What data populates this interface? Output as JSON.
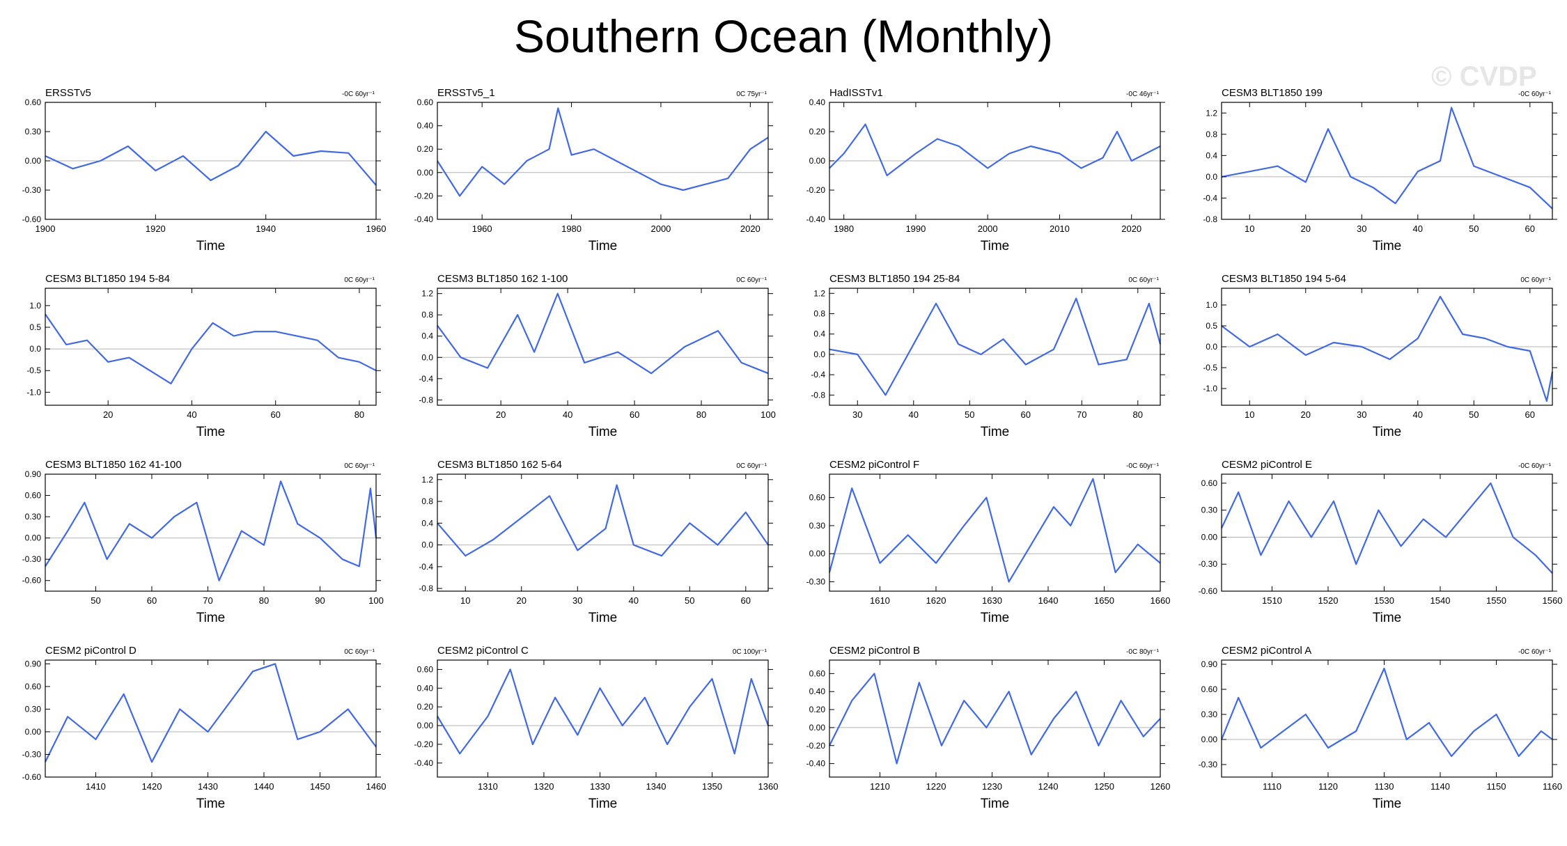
{
  "title": "Southern Ocean (Monthly)",
  "watermark": "© CVDP",
  "line_color": "#4169e1",
  "chart_data": [
    {
      "type": "line",
      "title": "ERSSTv5",
      "trend": "-0C 60yr⁻¹",
      "xlabel": "Time",
      "xlim": [
        1900,
        1960
      ],
      "ylim": [
        -0.6,
        0.6
      ],
      "xticks": [
        1900,
        1920,
        1940,
        1960
      ],
      "xtick_labels": [
        "1900",
        "1920",
        "1940",
        "1960"
      ],
      "yticks": [
        -0.6,
        -0.3,
        0,
        0.3,
        0.6
      ],
      "ytick_labels": [
        "-0.60",
        "-0.30",
        "0.00",
        "0.30",
        "0.60"
      ],
      "x": [
        1900,
        1905,
        1910,
        1915,
        1920,
        1925,
        1930,
        1935,
        1940,
        1945,
        1950,
        1955,
        1960
      ],
      "y": [
        0.05,
        -0.08,
        0.0,
        0.15,
        -0.1,
        0.05,
        -0.2,
        -0.05,
        0.3,
        0.05,
        0.1,
        0.08,
        -0.25
      ]
    },
    {
      "type": "line",
      "title": "ERSSTv5_1",
      "trend": "0C 75yr⁻¹",
      "xlabel": "Time",
      "xlim": [
        1950,
        2024
      ],
      "ylim": [
        -0.4,
        0.6
      ],
      "xticks": [
        1960,
        1980,
        2000,
        2020
      ],
      "xtick_labels": [
        "1960",
        "1980",
        "2000",
        "2020"
      ],
      "yticks": [
        -0.4,
        -0.2,
        0,
        0.2,
        0.4,
        0.6
      ],
      "ytick_labels": [
        "-0.40",
        "-0.20",
        "0.00",
        "0.20",
        "0.40",
        "0.60"
      ],
      "x": [
        1950,
        1955,
        1960,
        1965,
        1970,
        1975,
        1977,
        1980,
        1985,
        1990,
        1995,
        2000,
        2005,
        2010,
        2015,
        2020,
        2024
      ],
      "y": [
        0.1,
        -0.2,
        0.05,
        -0.1,
        0.1,
        0.2,
        0.55,
        0.15,
        0.2,
        0.1,
        0.0,
        -0.1,
        -0.15,
        -0.1,
        -0.05,
        0.2,
        0.3
      ]
    },
    {
      "type": "line",
      "title": "HadISSTv1",
      "trend": "-0C 46yr⁻¹",
      "xlabel": "Time",
      "xlim": [
        1978,
        2024
      ],
      "ylim": [
        -0.4,
        0.4
      ],
      "xticks": [
        1980,
        1990,
        2000,
        2010,
        2020
      ],
      "xtick_labels": [
        "1980",
        "1990",
        "2000",
        "2010",
        "2020"
      ],
      "yticks": [
        -0.4,
        -0.2,
        0,
        0.2,
        0.4
      ],
      "ytick_labels": [
        "-0.40",
        "-0.20",
        "0.00",
        "0.20",
        "0.40"
      ],
      "x": [
        1978,
        1980,
        1983,
        1986,
        1990,
        1993,
        1996,
        2000,
        2003,
        2006,
        2010,
        2013,
        2016,
        2018,
        2020,
        2024
      ],
      "y": [
        -0.05,
        0.05,
        0.25,
        -0.1,
        0.05,
        0.15,
        0.1,
        -0.05,
        0.05,
        0.1,
        0.05,
        -0.05,
        0.02,
        0.2,
        0.0,
        0.1
      ]
    },
    {
      "type": "line",
      "title": "CESM3 BLT1850 199",
      "trend": "-0C 60yr⁻¹",
      "xlabel": "Time",
      "xlim": [
        5,
        64
      ],
      "ylim": [
        -0.8,
        1.4
      ],
      "xticks": [
        10,
        20,
        30,
        40,
        50,
        60
      ],
      "xtick_labels": [
        "10",
        "20",
        "30",
        "40",
        "50",
        "60"
      ],
      "yticks": [
        -0.8,
        -0.4,
        0,
        0.4,
        0.8,
        1.2
      ],
      "ytick_labels": [
        "-0.8",
        "-0.4",
        "0.0",
        "0.4",
        "0.8",
        "1.2"
      ],
      "x": [
        5,
        10,
        15,
        20,
        24,
        28,
        32,
        36,
        40,
        44,
        46,
        50,
        55,
        60,
        64
      ],
      "y": [
        0.0,
        0.1,
        0.2,
        -0.1,
        0.9,
        0.0,
        -0.2,
        -0.5,
        0.1,
        0.3,
        1.3,
        0.2,
        0.0,
        -0.2,
        -0.6
      ]
    },
    {
      "type": "line",
      "title": "CESM3 BLT1850 194 5-84",
      "trend": "0C 60yr⁻¹",
      "xlabel": "Time",
      "xlim": [
        5,
        84
      ],
      "ylim": [
        -1.3,
        1.4
      ],
      "xticks": [
        20,
        40,
        60,
        80
      ],
      "xtick_labels": [
        "20",
        "40",
        "60",
        "80"
      ],
      "yticks": [
        -1.0,
        -0.5,
        0,
        0.5,
        1.0
      ],
      "ytick_labels": [
        "-1.0",
        "-0.5",
        "0.0",
        "0.5",
        "1.0"
      ],
      "x": [
        5,
        10,
        15,
        20,
        25,
        30,
        35,
        40,
        45,
        50,
        55,
        60,
        65,
        70,
        75,
        80,
        84
      ],
      "y": [
        0.8,
        0.1,
        0.2,
        -0.3,
        -0.2,
        -0.5,
        -0.8,
        0.0,
        0.6,
        0.3,
        0.4,
        0.4,
        0.3,
        0.2,
        -0.2,
        -0.3,
        -0.5
      ]
    },
    {
      "type": "line",
      "title": "CESM3 BLT1850 162 1-100",
      "trend": "0C 60yr⁻¹",
      "xlabel": "Time",
      "xlim": [
        1,
        100
      ],
      "ylim": [
        -0.9,
        1.3
      ],
      "xticks": [
        20,
        40,
        60,
        80,
        100
      ],
      "xtick_labels": [
        "20",
        "40",
        "60",
        "80",
        "100"
      ],
      "yticks": [
        -0.8,
        -0.4,
        0,
        0.4,
        0.8,
        1.2
      ],
      "ytick_labels": [
        "-0.8",
        "-0.4",
        "0.0",
        "0.4",
        "0.8",
        "1.2"
      ],
      "x": [
        1,
        8,
        16,
        25,
        30,
        37,
        45,
        55,
        65,
        75,
        85,
        92,
        100
      ],
      "y": [
        0.6,
        0.0,
        -0.2,
        0.8,
        0.1,
        1.2,
        -0.1,
        0.1,
        -0.3,
        0.2,
        0.5,
        -0.1,
        -0.3
      ]
    },
    {
      "type": "line",
      "title": "CESM3 BLT1850 194 25-84",
      "trend": "0C 60yr⁻¹",
      "xlabel": "Time",
      "xlim": [
        25,
        84
      ],
      "ylim": [
        -1.0,
        1.3
      ],
      "xticks": [
        30,
        40,
        50,
        60,
        70,
        80
      ],
      "xtick_labels": [
        "30",
        "40",
        "50",
        "60",
        "70",
        "80"
      ],
      "yticks": [
        -0.8,
        -0.4,
        0,
        0.4,
        0.8,
        1.2
      ],
      "ytick_labels": [
        "-0.8",
        "-0.4",
        "0.0",
        "0.4",
        "0.8",
        "1.2"
      ],
      "x": [
        25,
        30,
        35,
        40,
        44,
        48,
        52,
        56,
        60,
        65,
        69,
        73,
        78,
        82,
        84
      ],
      "y": [
        0.1,
        0.0,
        -0.8,
        0.2,
        1.0,
        0.2,
        0.0,
        0.3,
        -0.2,
        0.1,
        1.1,
        -0.2,
        -0.1,
        1.0,
        0.2
      ]
    },
    {
      "type": "line",
      "title": "CESM3 BLT1850 194 5-64",
      "trend": "0C 60yr⁻¹",
      "xlabel": "Time",
      "xlim": [
        5,
        64
      ],
      "ylim": [
        -1.4,
        1.4
      ],
      "xticks": [
        10,
        20,
        30,
        40,
        50,
        60
      ],
      "xtick_labels": [
        "10",
        "20",
        "30",
        "40",
        "50",
        "60"
      ],
      "yticks": [
        -1.0,
        -0.5,
        0,
        0.5,
        1.0
      ],
      "ytick_labels": [
        "-1.0",
        "-0.5",
        "0.0",
        "0.5",
        "1.0"
      ],
      "x": [
        5,
        10,
        15,
        20,
        25,
        30,
        35,
        40,
        44,
        48,
        52,
        56,
        60,
        63,
        64
      ],
      "y": [
        0.5,
        0.0,
        0.3,
        -0.2,
        0.1,
        0.0,
        -0.3,
        0.2,
        1.2,
        0.3,
        0.2,
        0.0,
        -0.1,
        -1.3,
        -0.6
      ]
    },
    {
      "type": "line",
      "title": "CESM3 BLT1850 162 41-100",
      "trend": "0C 60yr⁻¹",
      "xlabel": "Time",
      "xlim": [
        41,
        100
      ],
      "ylim": [
        -0.75,
        0.9
      ],
      "xticks": [
        50,
        60,
        70,
        80,
        90,
        100
      ],
      "xtick_labels": [
        "50",
        "60",
        "70",
        "80",
        "90",
        "100"
      ],
      "yticks": [
        -0.6,
        -0.3,
        0,
        0.3,
        0.6,
        0.9
      ],
      "ytick_labels": [
        "-0.60",
        "-0.30",
        "0.00",
        "0.30",
        "0.60",
        "0.90"
      ],
      "x": [
        41,
        45,
        48,
        52,
        56,
        60,
        64,
        68,
        72,
        76,
        80,
        83,
        86,
        90,
        94,
        97,
        99,
        100
      ],
      "y": [
        -0.4,
        0.1,
        0.5,
        -0.3,
        0.2,
        0.0,
        0.3,
        0.5,
        -0.6,
        0.1,
        -0.1,
        0.8,
        0.2,
        0.0,
        -0.3,
        -0.4,
        0.7,
        0.0
      ]
    },
    {
      "type": "line",
      "title": "CESM3 BLT1850 162 5-64",
      "trend": "0C 60yr⁻¹",
      "xlabel": "Time",
      "xlim": [
        5,
        64
      ],
      "ylim": [
        -0.85,
        1.3
      ],
      "xticks": [
        10,
        20,
        30,
        40,
        50,
        60
      ],
      "xtick_labels": [
        "10",
        "20",
        "30",
        "40",
        "50",
        "60"
      ],
      "yticks": [
        -0.8,
        -0.4,
        0,
        0.4,
        0.8,
        1.2
      ],
      "ytick_labels": [
        "-0.8",
        "-0.4",
        "0.0",
        "0.4",
        "0.8",
        "1.2"
      ],
      "x": [
        5,
        10,
        15,
        20,
        25,
        30,
        35,
        37,
        40,
        45,
        50,
        55,
        60,
        64
      ],
      "y": [
        0.4,
        -0.2,
        0.1,
        0.5,
        0.9,
        -0.1,
        0.3,
        1.1,
        0.0,
        -0.2,
        0.4,
        0.0,
        0.6,
        0.0
      ]
    },
    {
      "type": "line",
      "title": "CESM2 piControl F",
      "trend": "-0C 60yr⁻¹",
      "xlabel": "Time",
      "xlim": [
        1601,
        1660
      ],
      "ylim": [
        -0.4,
        0.85
      ],
      "xticks": [
        1610,
        1620,
        1630,
        1640,
        1650,
        1660
      ],
      "xtick_labels": [
        "1610",
        "1620",
        "1630",
        "1640",
        "1650",
        "1660"
      ],
      "yticks": [
        -0.3,
        0,
        0.3,
        0.6
      ],
      "ytick_labels": [
        "-0.30",
        "0.00",
        "0.30",
        "0.60"
      ],
      "x": [
        1601,
        1605,
        1610,
        1615,
        1620,
        1625,
        1629,
        1633,
        1637,
        1641,
        1644,
        1648,
        1652,
        1656,
        1660
      ],
      "y": [
        -0.2,
        0.7,
        -0.1,
        0.2,
        -0.1,
        0.3,
        0.6,
        -0.3,
        0.1,
        0.5,
        0.3,
        0.8,
        -0.2,
        0.1,
        -0.1
      ]
    },
    {
      "type": "line",
      "title": "CESM2 piControl E",
      "trend": "-0C 60yr⁻¹",
      "xlabel": "Time",
      "xlim": [
        1501,
        1560
      ],
      "ylim": [
        -0.6,
        0.7
      ],
      "xticks": [
        1510,
        1520,
        1530,
        1540,
        1550,
        1560
      ],
      "xtick_labels": [
        "1510",
        "1520",
        "1530",
        "1540",
        "1550",
        "1560"
      ],
      "yticks": [
        -0.6,
        -0.3,
        0,
        0.3,
        0.6
      ],
      "ytick_labels": [
        "-0.60",
        "-0.30",
        "0.00",
        "0.30",
        "0.60"
      ],
      "x": [
        1501,
        1504,
        1508,
        1513,
        1517,
        1521,
        1525,
        1529,
        1533,
        1537,
        1541,
        1545,
        1549,
        1553,
        1557,
        1560
      ],
      "y": [
        0.1,
        0.5,
        -0.2,
        0.4,
        0.0,
        0.4,
        -0.3,
        0.3,
        -0.1,
        0.2,
        0.0,
        0.3,
        0.6,
        0.0,
        -0.2,
        -0.4
      ]
    },
    {
      "type": "line",
      "title": "CESM2 piControl D",
      "trend": "0C 60yr⁻¹",
      "xlabel": "Time",
      "xlim": [
        1401,
        1460
      ],
      "ylim": [
        -0.6,
        0.95
      ],
      "xticks": [
        1410,
        1420,
        1430,
        1440,
        1450,
        1460
      ],
      "xtick_labels": [
        "1410",
        "1420",
        "1430",
        "1440",
        "1450",
        "1460"
      ],
      "yticks": [
        -0.6,
        -0.3,
        0,
        0.3,
        0.6,
        0.9
      ],
      "ytick_labels": [
        "-0.60",
        "-0.30",
        "0.00",
        "0.30",
        "0.60",
        "0.90"
      ],
      "x": [
        1401,
        1405,
        1410,
        1415,
        1420,
        1425,
        1430,
        1434,
        1438,
        1442,
        1446,
        1450,
        1455,
        1460
      ],
      "y": [
        -0.4,
        0.2,
        -0.1,
        0.5,
        -0.4,
        0.3,
        0.0,
        0.4,
        0.8,
        0.9,
        -0.1,
        0.0,
        0.3,
        -0.2
      ]
    },
    {
      "type": "line",
      "title": "CESM2 piControl C",
      "trend": "0C 100yr⁻¹",
      "xlabel": "Time",
      "xlim": [
        1301,
        1360
      ],
      "ylim": [
        -0.55,
        0.7
      ],
      "xticks": [
        1310,
        1320,
        1330,
        1340,
        1350,
        1360
      ],
      "xtick_labels": [
        "1310",
        "1320",
        "1330",
        "1340",
        "1350",
        "1360"
      ],
      "yticks": [
        -0.4,
        -0.2,
        0,
        0.2,
        0.4,
        0.6
      ],
      "ytick_labels": [
        "-0.40",
        "-0.20",
        "0.00",
        "0.20",
        "0.40",
        "0.60"
      ],
      "x": [
        1301,
        1305,
        1310,
        1314,
        1318,
        1322,
        1326,
        1330,
        1334,
        1338,
        1342,
        1346,
        1350,
        1354,
        1357,
        1360
      ],
      "y": [
        0.1,
        -0.3,
        0.1,
        0.6,
        -0.2,
        0.3,
        -0.1,
        0.4,
        0.0,
        0.3,
        -0.2,
        0.2,
        0.5,
        -0.3,
        0.5,
        0.0
      ]
    },
    {
      "type": "line",
      "title": "CESM2 piControl B",
      "trend": "-0C 80yr⁻¹",
      "xlabel": "Time",
      "xlim": [
        1201,
        1260
      ],
      "ylim": [
        -0.55,
        0.75
      ],
      "xticks": [
        1210,
        1220,
        1230,
        1240,
        1250,
        1260
      ],
      "xtick_labels": [
        "1210",
        "1220",
        "1230",
        "1240",
        "1250",
        "1260"
      ],
      "yticks": [
        -0.4,
        -0.2,
        0,
        0.2,
        0.4,
        0.6
      ],
      "ytick_labels": [
        "-0.40",
        "-0.20",
        "0.00",
        "0.20",
        "0.40",
        "0.60"
      ],
      "x": [
        1201,
        1205,
        1209,
        1213,
        1217,
        1221,
        1225,
        1229,
        1233,
        1237,
        1241,
        1245,
        1249,
        1253,
        1257,
        1260
      ],
      "y": [
        -0.2,
        0.3,
        0.6,
        -0.4,
        0.5,
        -0.2,
        0.3,
        0.0,
        0.4,
        -0.3,
        0.1,
        0.4,
        -0.2,
        0.3,
        -0.1,
        0.1
      ]
    },
    {
      "type": "line",
      "title": "CESM2 piControl A",
      "trend": "-0C 60yr⁻¹",
      "xlabel": "Time",
      "xlim": [
        1101,
        1160
      ],
      "ylim": [
        -0.45,
        0.95
      ],
      "xticks": [
        1110,
        1120,
        1130,
        1140,
        1150,
        1160
      ],
      "xtick_labels": [
        "1110",
        "1120",
        "1130",
        "1140",
        "1150",
        "1160"
      ],
      "yticks": [
        -0.3,
        0,
        0.3,
        0.6,
        0.9
      ],
      "ytick_labels": [
        "-0.30",
        "0.00",
        "0.30",
        "0.60",
        "0.90"
      ],
      "x": [
        1101,
        1104,
        1108,
        1112,
        1116,
        1120,
        1125,
        1130,
        1134,
        1138,
        1142,
        1146,
        1150,
        1154,
        1158,
        1160
      ],
      "y": [
        0.0,
        0.5,
        -0.1,
        0.1,
        0.3,
        -0.1,
        0.1,
        0.85,
        0.0,
        0.2,
        -0.2,
        0.1,
        0.3,
        -0.2,
        0.1,
        0.0
      ]
    }
  ]
}
